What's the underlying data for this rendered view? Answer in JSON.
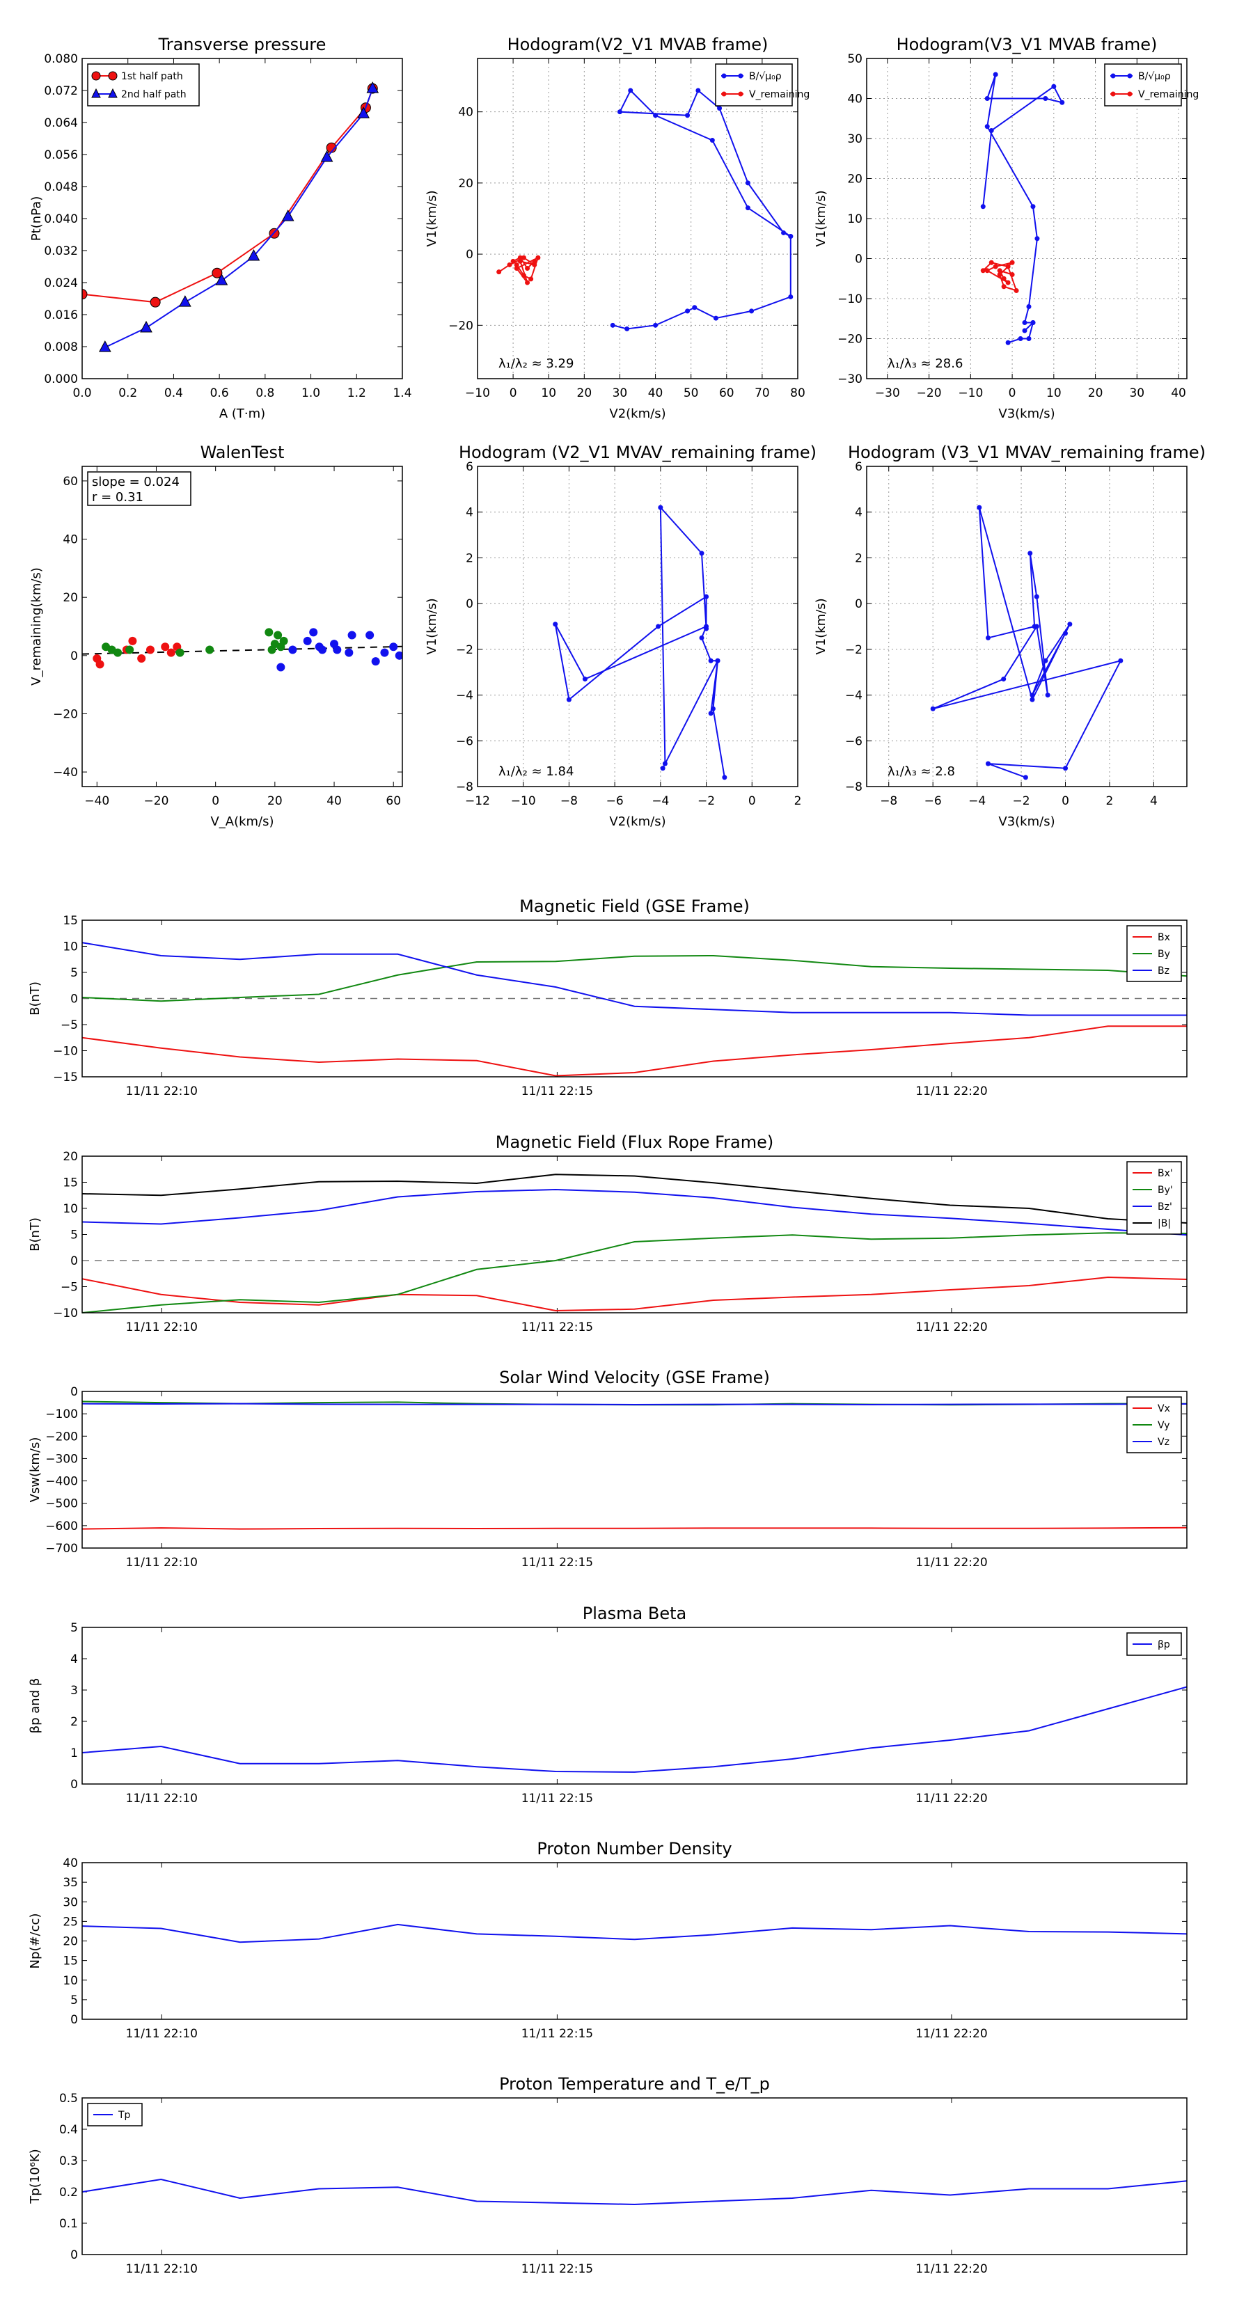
{
  "colors": {
    "red": "#ee1111",
    "green": "#118811",
    "blue": "#1111ee",
    "black": "#000000",
    "grid": "#999999",
    "zero": "#777777"
  },
  "chart_data": [
    {
      "id": "tp",
      "type": "scatter-line",
      "title": "Transverse pressure",
      "xlabel": "A (T·m)",
      "ylabel": "Pt(nPa)",
      "xlim": [
        0.0,
        1.4
      ],
      "ylim": [
        0.0,
        0.08
      ],
      "xticks": [
        0.0,
        0.2,
        0.4,
        0.6,
        0.8,
        1.0,
        1.2,
        1.4
      ],
      "yticks": [
        0.0,
        0.008,
        0.016,
        0.024,
        0.032,
        0.04,
        0.048,
        0.056,
        0.064,
        0.072,
        0.08
      ],
      "xdec": 1,
      "ydec": 3,
      "grid": false,
      "legend": "top-left",
      "series": [
        {
          "name": "1st half path",
          "color": "red",
          "marker": "circle",
          "x": [
            0.0,
            0.32,
            0.59,
            0.84,
            1.09,
            1.24,
            1.27
          ],
          "y": [
            0.0211,
            0.0191,
            0.0264,
            0.0363,
            0.0577,
            0.0677,
            0.0725
          ]
        },
        {
          "name": "2nd half path",
          "color": "blue",
          "marker": "triangle",
          "x": [
            0.1,
            0.28,
            0.45,
            0.61,
            0.75,
            0.9,
            1.07,
            1.23,
            1.27
          ],
          "y": [
            0.0078,
            0.0127,
            0.0191,
            0.0245,
            0.0306,
            0.0405,
            0.0553,
            0.0662,
            0.0725
          ]
        }
      ]
    },
    {
      "id": "h21",
      "type": "scatter-line",
      "title": "Hodogram(V2_V1 MVAB frame)",
      "xlabel": "V2(km/s)",
      "ylabel": "V1(km/s)",
      "xlim": [
        -10,
        80
      ],
      "ylim": [
        -35,
        55
      ],
      "xticks": [
        -10,
        0,
        10,
        20,
        30,
        40,
        50,
        60,
        70,
        80
      ],
      "yticks": [
        -20,
        0,
        20,
        40
      ],
      "xdec": 0,
      "ydec": 0,
      "grid": true,
      "legend": "top-right",
      "annotation": "λ₁/λ₂ ≈ 3.29",
      "series": [
        {
          "name": "B/√μ₀ρ",
          "color": "blue",
          "marker": "dot",
          "x": [
            28,
            32,
            40,
            49,
            51,
            57,
            67,
            78,
            78,
            66,
            56,
            40,
            33,
            30,
            49,
            52,
            58,
            66,
            76,
            78
          ],
          "y": [
            -20,
            -21,
            -20,
            -16,
            -15,
            -18,
            -16,
            -12,
            5,
            13,
            32,
            39,
            46,
            40,
            39,
            46,
            41,
            20,
            6,
            5
          ]
        },
        {
          "name": "V_remaining",
          "color": "red",
          "marker": "dot",
          "x": [
            -4,
            -1,
            3,
            6,
            2,
            4,
            1,
            7,
            5,
            3,
            1,
            0,
            2,
            4,
            6
          ],
          "y": [
            -5,
            -3,
            -1,
            -3,
            -2,
            -8,
            -4,
            -1,
            -7,
            -6,
            -3,
            -2,
            -1,
            -4,
            -2
          ]
        }
      ]
    },
    {
      "id": "h31",
      "type": "scatter-line",
      "title": "Hodogram(V3_V1 MVAB frame)",
      "xlabel": "V3(km/s)",
      "ylabel": "V1(km/s)",
      "xlim": [
        -35,
        42
      ],
      "ylim": [
        -30,
        50
      ],
      "xticks": [
        -30,
        -20,
        -10,
        0,
        10,
        20,
        30,
        40
      ],
      "yticks": [
        -30,
        -20,
        -10,
        0,
        10,
        20,
        30,
        40,
        50
      ],
      "xdec": 0,
      "ydec": 0,
      "grid": true,
      "legend": "top-right",
      "annotation": "λ₁/λ₃ ≈ 28.6",
      "series": [
        {
          "name": "B/√μ₀ρ",
          "color": "blue",
          "marker": "dot",
          "x": [
            -1,
            2,
            4,
            5,
            3,
            5,
            3,
            4,
            6,
            5,
            -6,
            -4,
            -6,
            8,
            12,
            10,
            -5,
            -7
          ],
          "y": [
            -21,
            -20,
            -20,
            -16,
            -18,
            -16,
            -16,
            -12,
            5,
            13,
            33,
            46,
            40,
            40,
            39,
            43,
            32,
            13
          ]
        },
        {
          "name": "V_remaining",
          "color": "red",
          "marker": "dot",
          "x": [
            -7,
            -5,
            -1,
            1,
            -2,
            -3,
            0,
            -4,
            -6,
            -1,
            -2,
            -3,
            0
          ],
          "y": [
            -3,
            -1,
            -2,
            -8,
            -7,
            -4,
            -1,
            -2,
            -3,
            -6,
            -5,
            -3,
            -4
          ]
        }
      ]
    },
    {
      "id": "walen",
      "type": "scatter",
      "title": "WalenTest",
      "xlabel": "V_A(km/s)",
      "ylabel": "V_remaining(km/s)",
      "xlim": [
        -45,
        63
      ],
      "ylim": [
        -45,
        65
      ],
      "xticks": [
        -40,
        -20,
        0,
        20,
        40,
        60
      ],
      "yticks": [
        -40,
        -20,
        0,
        20,
        40,
        60
      ],
      "xdec": 0,
      "ydec": 0,
      "grid": false,
      "annotation_lines": [
        "slope = 0.024",
        "r = 0.31"
      ],
      "fit": {
        "slope": 0.024,
        "intercept": 1.6
      },
      "series": [
        {
          "name": "red",
          "color": "red",
          "marker": "dot",
          "x": [
            -40,
            -39,
            -30,
            -28,
            -22,
            -17,
            -15,
            -13,
            -25
          ],
          "y": [
            -1,
            -3,
            2,
            5,
            2,
            3,
            1,
            3,
            -1
          ]
        },
        {
          "name": "green",
          "color": "green",
          "marker": "dot",
          "x": [
            -37,
            -35,
            -33,
            -29,
            -12,
            -2,
            18,
            19,
            20,
            21,
            22,
            23
          ],
          "y": [
            3,
            2,
            1,
            2,
            1,
            2,
            8,
            2,
            4,
            7,
            3,
            5
          ]
        },
        {
          "name": "blue",
          "color": "blue",
          "marker": "dot",
          "x": [
            22,
            26,
            31,
            33,
            35,
            36,
            40,
            41,
            45,
            46,
            52,
            54,
            57,
            60,
            62
          ],
          "y": [
            -4,
            2,
            5,
            8,
            3,
            2,
            4,
            2,
            1,
            7,
            7,
            -2,
            1,
            3,
            0
          ]
        }
      ]
    },
    {
      "id": "h21r",
      "type": "scatter-line",
      "title": "Hodogram (V2_V1 MVAV_remaining frame)",
      "xlabel": "V2(km/s)",
      "ylabel": "V1(km/s)",
      "xlim": [
        -12,
        2
      ],
      "ylim": [
        -8,
        6
      ],
      "xticks": [
        -12,
        -10,
        -8,
        -6,
        -4,
        -2,
        0,
        2
      ],
      "yticks": [
        -8,
        -6,
        -4,
        -2,
        0,
        2,
        4,
        6
      ],
      "xdec": 0,
      "ydec": 0,
      "grid": true,
      "annotation": "λ₁/λ₂ ≈ 1.84",
      "series": [
        {
          "name": "V",
          "color": "blue",
          "marker": "dot",
          "x": [
            -1.2,
            -1.7,
            -1.5,
            -1.8,
            -2.2,
            -2.0,
            -7.3,
            -8.6,
            -8.0,
            -4.1,
            -2.0,
            -2.0,
            -2.2,
            -4.0,
            -3.8,
            -3.9,
            -1.5,
            -1.8
          ],
          "y": [
            -7.6,
            -4.6,
            -2.5,
            -2.5,
            -1.5,
            -1.0,
            -3.3,
            -0.9,
            -4.2,
            -1.0,
            0.3,
            -1.1,
            2.2,
            4.2,
            -7.0,
            -7.2,
            -2.5,
            -4.8
          ]
        }
      ]
    },
    {
      "id": "h31r",
      "type": "scatter-line",
      "title": "Hodogram (V3_V1 MVAV_remaining frame)",
      "xlabel": "V3(km/s)",
      "ylabel": "V1(km/s)",
      "xlim": [
        -9,
        5.5
      ],
      "ylim": [
        -8,
        6
      ],
      "xticks": [
        -8,
        -6,
        -4,
        -2,
        0,
        2,
        4
      ],
      "yticks": [
        -8,
        -6,
        -4,
        -2,
        0,
        2,
        4,
        6
      ],
      "xdec": 0,
      "ydec": 0,
      "grid": true,
      "annotation": "λ₁/λ₃ ≈ 2.8",
      "series": [
        {
          "name": "V",
          "color": "blue",
          "marker": "dot",
          "x": [
            -1.8,
            -3.5,
            0.0,
            2.5,
            -6.0,
            -2.8,
            -1.3,
            -0.8,
            -1.3,
            -1.6,
            -1.4,
            -3.5,
            -3.9,
            -1.5,
            0.2,
            -0.9,
            -1.5,
            0.0
          ],
          "y": [
            -7.6,
            -7.0,
            -7.2,
            -2.5,
            -4.6,
            -3.3,
            -1.0,
            -4.0,
            0.3,
            2.2,
            -1.0,
            -1.5,
            4.2,
            -4.2,
            -0.9,
            -2.5,
            -4.0,
            -1.3
          ]
        }
      ]
    },
    {
      "id": "bgse",
      "type": "line",
      "title": "Magnetic Field (GSE Frame)",
      "ylabel": "B(nT)",
      "ylim": [
        -15,
        15
      ],
      "yticks": [
        -15,
        -10,
        -5,
        0,
        5,
        10,
        15
      ],
      "zero_line": true,
      "time_ticks": [
        "11/11 22:10",
        "11/11 22:15",
        "11/11 22:20"
      ],
      "legend": "top-right",
      "x": [
        0,
        1,
        2,
        3,
        4,
        5,
        6,
        7,
        8,
        9,
        10,
        11,
        12,
        13,
        14
      ],
      "series": [
        {
          "name": "Bx",
          "color": "red",
          "values": [
            -7.5,
            -9.5,
            -11.2,
            -12.2,
            -11.6,
            -11.9,
            -14.8,
            -14.2,
            -12,
            -10.8,
            -9.8,
            -8.6,
            -7.5,
            -5.3,
            -5.3
          ]
        },
        {
          "name": "By",
          "color": "green",
          "values": [
            0.2,
            -0.5,
            0.2,
            0.8,
            4.5,
            7,
            7.1,
            8.1,
            8.2,
            7.3,
            6.1,
            5.8,
            5.6,
            5.4,
            4.3
          ]
        },
        {
          "name": "Bz",
          "color": "blue",
          "values": [
            10.7,
            8.2,
            7.5,
            8.5,
            8.5,
            4.5,
            2.2,
            -1.5,
            -2.1,
            -2.7,
            -2.7,
            -2.7,
            -3.2,
            -3.2,
            -3.2
          ]
        }
      ]
    },
    {
      "id": "bfr",
      "type": "line",
      "title": "Magnetic Field (Flux Rope Frame)",
      "ylabel": "B(nT)",
      "ylim": [
        -10,
        20
      ],
      "yticks": [
        -10,
        -5,
        0,
        5,
        10,
        15,
        20
      ],
      "zero_line": true,
      "time_ticks": [
        "11/11 22:10",
        "11/11 22:15",
        "11/11 22:20"
      ],
      "legend": "top-right",
      "x": [
        0,
        1,
        2,
        3,
        4,
        5,
        6,
        7,
        8,
        9,
        10,
        11,
        12,
        13,
        14
      ],
      "series": [
        {
          "name": "Bx'",
          "color": "red",
          "values": [
            -3.5,
            -6.5,
            -8,
            -8.5,
            -6.5,
            -6.7,
            -9.6,
            -9.3,
            -7.6,
            -7,
            -6.5,
            -5.6,
            -4.8,
            -3.2,
            -3.6
          ]
        },
        {
          "name": "By'",
          "color": "green",
          "values": [
            -10,
            -8.5,
            -7.5,
            -8,
            -6.5,
            -1.7,
            0,
            3.6,
            4.3,
            4.9,
            4.1,
            4.3,
            4.9,
            5.3,
            5.2
          ]
        },
        {
          "name": "Bz'",
          "color": "blue",
          "values": [
            7.4,
            7,
            8.2,
            9.6,
            12.2,
            13.2,
            13.6,
            13.1,
            12,
            10.2,
            8.9,
            8.1,
            7.1,
            6,
            4.9
          ]
        },
        {
          "name": "|B|",
          "color": "black",
          "values": [
            12.8,
            12.5,
            13.7,
            15.1,
            15.2,
            14.8,
            16.5,
            16.2,
            14.9,
            13.4,
            11.9,
            10.6,
            10,
            8,
            7.2
          ]
        }
      ]
    },
    {
      "id": "vsw",
      "type": "line",
      "title": "Solar Wind Velocity (GSE Frame)",
      "ylabel": "Vsw(km/s)",
      "ylim": [
        -700,
        0
      ],
      "yticks": [
        -700,
        -600,
        -500,
        -400,
        -300,
        -200,
        -100,
        0
      ],
      "zero_line": false,
      "time_ticks": [
        "11/11 22:10",
        "11/11 22:15",
        "11/11 22:20"
      ],
      "legend": "top-right",
      "x": [
        0,
        1,
        2,
        3,
        4,
        5,
        6,
        7,
        8,
        9,
        10,
        11,
        12,
        13,
        14
      ],
      "series": [
        {
          "name": "Vx",
          "color": "red",
          "values": [
            -615,
            -610,
            -615,
            -613,
            -612,
            -613,
            -612,
            -612,
            -611,
            -611,
            -611,
            -612,
            -612,
            -611,
            -609
          ]
        },
        {
          "name": "Vy",
          "color": "green",
          "values": [
            -45,
            -50,
            -55,
            -50,
            -48,
            -55,
            -58,
            -60,
            -60,
            -55,
            -58,
            -60,
            -58,
            -55,
            -55
          ]
        },
        {
          "name": "Vz",
          "color": "blue",
          "values": [
            -55,
            -56,
            -55,
            -57,
            -58,
            -58,
            -58,
            -59,
            -58,
            -58,
            -59,
            -58,
            -57,
            -57,
            -56
          ]
        }
      ]
    },
    {
      "id": "beta",
      "type": "line",
      "title": "Plasma Beta",
      "ylabel": "βp and β",
      "ylim": [
        0,
        5
      ],
      "yticks": [
        0,
        1,
        2,
        3,
        4,
        5
      ],
      "zero_line": false,
      "time_ticks": [
        "11/11 22:10",
        "11/11 22:15",
        "11/11 22:20"
      ],
      "legend": "top-right",
      "x": [
        0,
        1,
        2,
        3,
        4,
        5,
        6,
        7,
        8,
        9,
        10,
        11,
        12,
        13,
        14
      ],
      "series": [
        {
          "name": "βp",
          "color": "blue",
          "values": [
            1.0,
            1.2,
            0.65,
            0.65,
            0.75,
            0.55,
            0.4,
            0.38,
            0.55,
            0.8,
            1.15,
            1.4,
            1.7,
            2.4,
            3.1
          ]
        }
      ]
    },
    {
      "id": "np",
      "type": "line",
      "title": "Proton Number Density",
      "ylabel": "Np(#/cc)",
      "ylim": [
        0,
        40
      ],
      "yticks": [
        0,
        5,
        10,
        15,
        20,
        25,
        30,
        35,
        40
      ],
      "zero_line": false,
      "time_ticks": [
        "11/11 22:10",
        "11/11 22:15",
        "11/11 22:20"
      ],
      "x": [
        0,
        1,
        2,
        3,
        4,
        5,
        6,
        7,
        8,
        9,
        10,
        11,
        12,
        13,
        14
      ],
      "series": [
        {
          "name": "Np",
          "color": "blue",
          "values": [
            23.8,
            23.2,
            19.7,
            20.5,
            24.2,
            21.8,
            21.2,
            20.4,
            21.6,
            23.3,
            22.9,
            23.9,
            22.4,
            22.3,
            21.8
          ]
        }
      ]
    },
    {
      "id": "tp2",
      "type": "line",
      "title": "Proton Temperature and T_e/T_p",
      "ylabel": "Tp(10⁶K)",
      "ylim": [
        0,
        0.5
      ],
      "yticks": [
        0,
        0.1,
        0.2,
        0.3,
        0.4,
        0.5
      ],
      "zero_line": false,
      "time_ticks": [
        "11/11 22:10",
        "11/11 22:15",
        "11/11 22:20"
      ],
      "legend": "top-left",
      "x": [
        0,
        1,
        2,
        3,
        4,
        5,
        6,
        7,
        8,
        9,
        10,
        11,
        12,
        13,
        14
      ],
      "series": [
        {
          "name": "Tp",
          "color": "blue",
          "values": [
            0.2,
            0.24,
            0.18,
            0.21,
            0.215,
            0.17,
            0.165,
            0.16,
            0.17,
            0.18,
            0.205,
            0.19,
            0.21,
            0.21,
            0.235
          ]
        }
      ]
    }
  ]
}
